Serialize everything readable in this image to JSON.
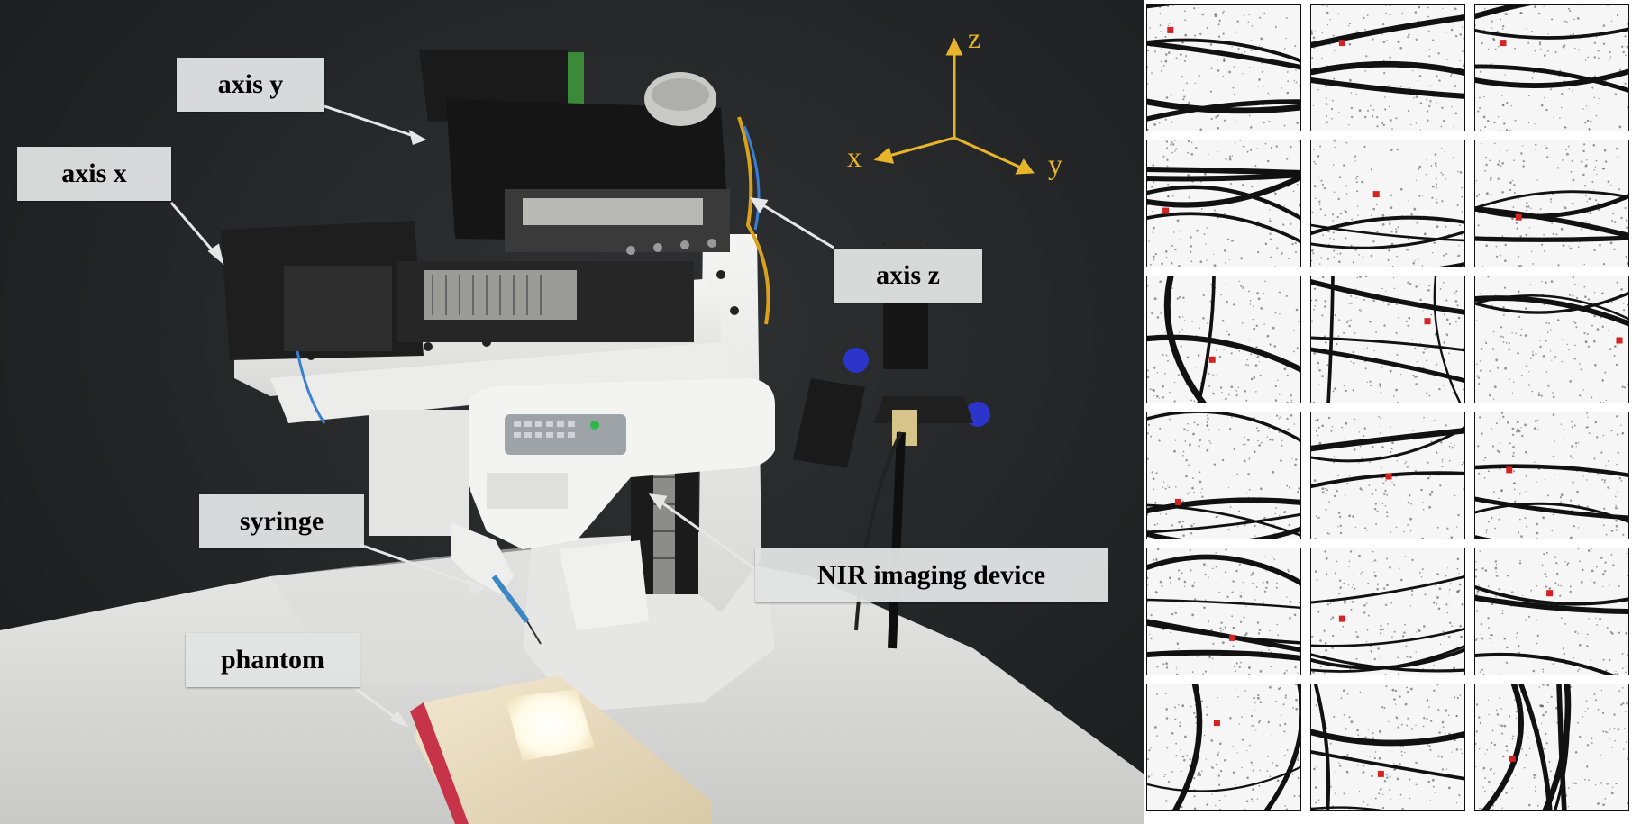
{
  "labels": {
    "axis_y": "axis y",
    "axis_x": "axis x",
    "axis_z": "axis z",
    "syringe": "syringe",
    "nir": "NIR imaging device",
    "phantom": "phantom"
  },
  "coordinate_frame": {
    "z": "z",
    "x": "x",
    "y": "y",
    "color": "#e8b52a"
  },
  "colors": {
    "background": "#232526",
    "label_box": "#e2e4e4",
    "marker": "#d62222",
    "vein": "#111111"
  },
  "vein_grid": {
    "rows": 6,
    "columns": 3,
    "marker_color": "#d62222"
  }
}
